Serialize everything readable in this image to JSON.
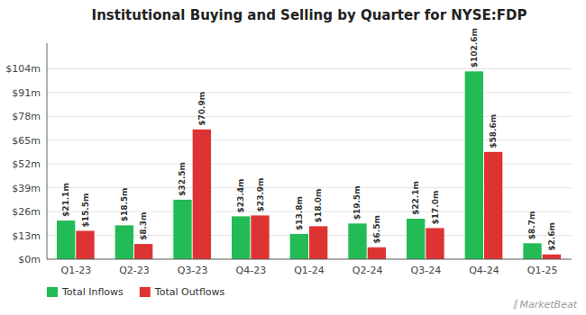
{
  "chart_data": {
    "type": "bar",
    "title": "Institutional Buying and Selling by Quarter for NYSE:FDP",
    "categories": [
      "Q1-23",
      "Q2-23",
      "Q3-23",
      "Q4-23",
      "Q1-24",
      "Q2-24",
      "Q3-24",
      "Q4-24",
      "Q1-25"
    ],
    "series": [
      {
        "name": "Total Inflows",
        "color": "#22bb55",
        "values": [
          21.1,
          18.5,
          32.5,
          23.4,
          13.8,
          19.5,
          22.1,
          102.6,
          8.7
        ],
        "value_labels": [
          "$21.1m",
          "$18.5m",
          "$32.5m",
          "$23.4m",
          "$13.8m",
          "$19.5m",
          "$22.1m",
          "$102.6m",
          "$8.7m"
        ]
      },
      {
        "name": "Total Outflows",
        "color": "#dd3333",
        "values": [
          15.5,
          8.3,
          70.9,
          23.9,
          18.0,
          6.5,
          17.0,
          58.6,
          2.6
        ],
        "value_labels": [
          "$15.5m",
          "$8.3m",
          "$70.9m",
          "$23.9m",
          "$18.0m",
          "$6.5m",
          "$17.0m",
          "$58.6m",
          "$2.6m"
        ]
      }
    ],
    "ylim": [
      0,
      118
    ],
    "yticks": [
      {
        "value": 0,
        "label": "$0m"
      },
      {
        "value": 13,
        "label": "$13m"
      },
      {
        "value": 26,
        "label": "$26m"
      },
      {
        "value": 39,
        "label": "$39m"
      },
      {
        "value": 52,
        "label": "$52m"
      },
      {
        "value": 65,
        "label": "$65m"
      },
      {
        "value": 78,
        "label": "$78m"
      },
      {
        "value": 91,
        "label": "$91m"
      },
      {
        "value": 104,
        "label": "$104m"
      }
    ],
    "grid": true,
    "legend": "bottom",
    "data_labels": true,
    "annotations": [
      "⫿ MarketBeat"
    ]
  }
}
